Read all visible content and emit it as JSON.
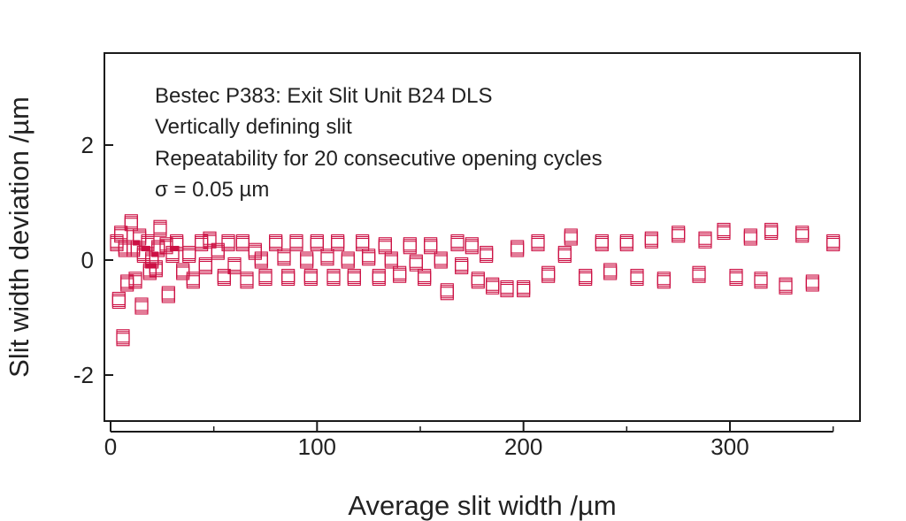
{
  "chart_data": {
    "type": "scatter",
    "xlabel": "Average slit width /µm",
    "ylabel": "Slit width deviation /µm",
    "xlim": [
      -3,
      363
    ],
    "ylim": [
      -2.8,
      3.6
    ],
    "xticks": [
      0,
      100,
      200,
      300
    ],
    "yticks": [
      -2,
      0,
      2
    ],
    "grid": false,
    "marker": "open-square",
    "marker_color": "#cc1144",
    "annotations": [
      "Bestec P383: Exit Slit Unit B24 DLS",
      "Vertically defining slit",
      "Repeatability for 20 consecutive opening cycles",
      "σ = 0.05 µm"
    ],
    "series": [
      {
        "x": [
          3,
          4,
          5,
          6,
          7,
          8,
          10,
          11,
          12,
          14,
          15,
          16,
          18,
          19,
          20,
          22,
          23,
          24,
          27,
          28,
          30,
          32,
          35,
          38,
          40,
          44,
          46,
          48,
          52,
          55,
          57,
          60,
          64,
          66,
          70,
          73,
          75,
          80,
          84,
          86,
          90,
          95,
          97,
          100,
          105,
          108,
          110,
          115,
          118,
          122,
          125,
          130,
          133,
          136,
          140,
          145,
          148,
          152,
          155,
          160,
          163,
          168,
          170,
          175,
          178,
          182,
          185,
          192,
          197,
          200,
          207,
          212,
          220,
          223,
          230,
          238,
          242,
          250,
          255,
          262,
          268,
          275,
          285,
          288,
          297,
          303,
          310,
          315,
          320,
          327,
          335,
          340,
          350
        ],
        "y": [
          0.3,
          -0.7,
          0.45,
          -1.35,
          0.2,
          -0.4,
          0.65,
          0.2,
          -0.35,
          0.4,
          -0.8,
          0.1,
          0.3,
          -0.2,
          0.0,
          -0.15,
          0.2,
          0.55,
          0.25,
          -0.6,
          0.1,
          0.3,
          -0.2,
          0.1,
          -0.35,
          0.3,
          -0.1,
          0.35,
          0.15,
          -0.3,
          0.3,
          -0.1,
          0.3,
          -0.35,
          0.15,
          0.0,
          -0.3,
          0.3,
          0.05,
          -0.3,
          0.3,
          0.0,
          -0.3,
          0.3,
          0.05,
          -0.3,
          0.3,
          0.0,
          -0.3,
          0.3,
          0.05,
          -0.3,
          0.25,
          0.0,
          -0.25,
          0.25,
          -0.05,
          -0.3,
          0.25,
          0.0,
          -0.55,
          0.3,
          -0.1,
          0.25,
          -0.35,
          0.1,
          -0.45,
          -0.5,
          0.2,
          -0.5,
          0.3,
          -0.25,
          0.1,
          0.4,
          -0.3,
          0.3,
          -0.2,
          0.3,
          -0.3,
          0.35,
          -0.35,
          0.45,
          -0.25,
          0.35,
          0.5,
          -0.3,
          0.4,
          -0.35,
          0.5,
          -0.45,
          0.45,
          -0.4,
          0.3
        ]
      }
    ]
  }
}
